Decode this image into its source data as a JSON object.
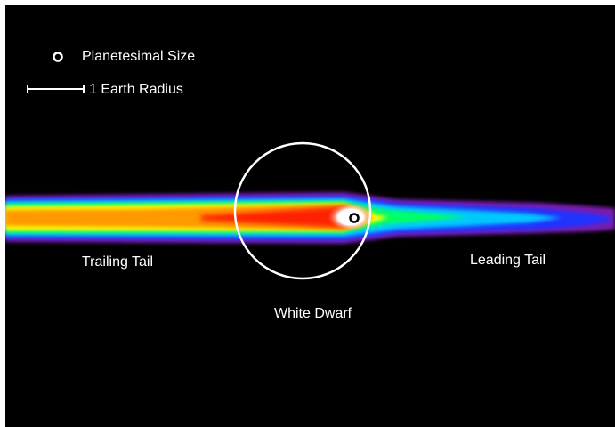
{
  "legend": {
    "planetesimal_label": "Planetesimal Size",
    "scale_label": "1 Earth Radius",
    "planetesimal_icon": "ring-marker-icon",
    "scale_icon": "scale-bar-icon"
  },
  "labels": {
    "trailing_tail": "Trailing Tail",
    "leading_tail": "Leading Tail",
    "white_dwarf": "White Dwarf"
  },
  "colors": {
    "background": "#000000",
    "foreground": "#ffffff",
    "density_scale": [
      "#7a1fb0",
      "#2233ff",
      "#00c8ff",
      "#00ff66",
      "#ffff00",
      "#ff9900",
      "#ff2200",
      "#ffffff"
    ]
  }
}
